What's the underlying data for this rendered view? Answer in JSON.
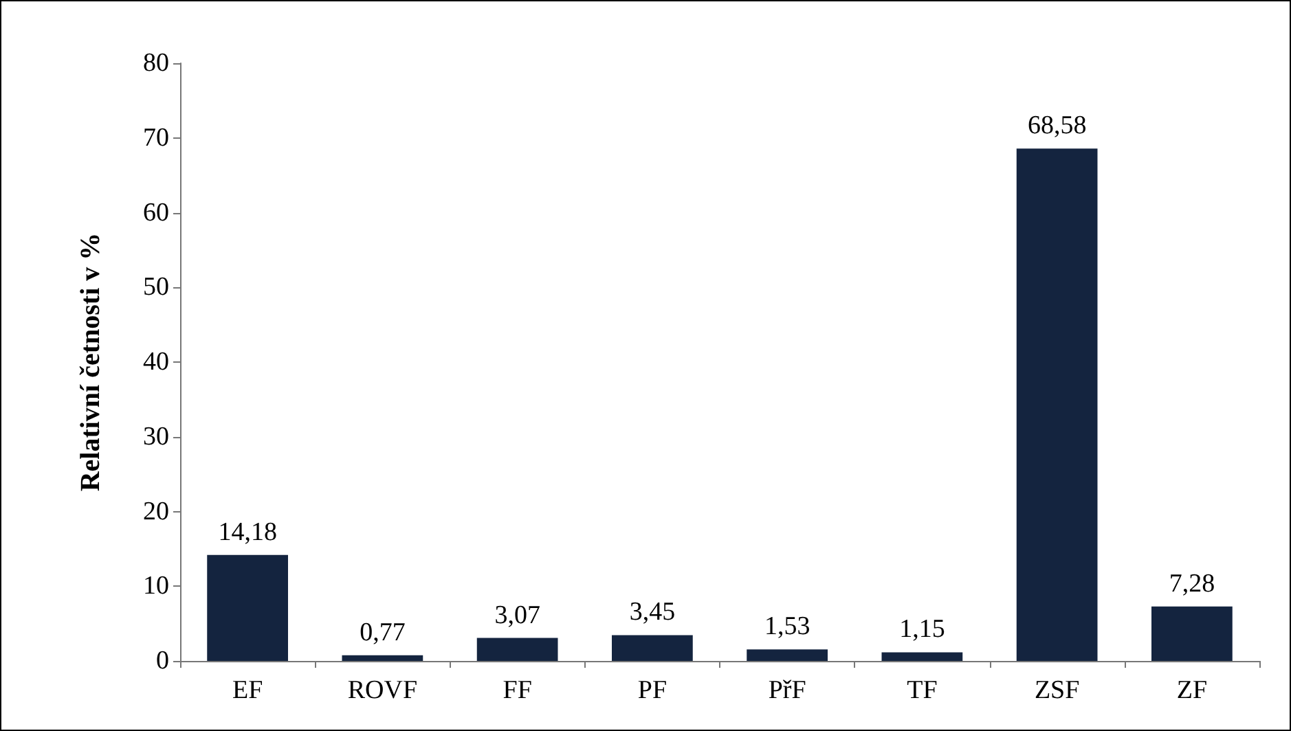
{
  "chart_data": {
    "type": "bar",
    "ylabel": "Relativní četnosti v %",
    "categories": [
      "EF",
      "ROVF",
      "FF",
      "PF",
      "PřF",
      "TF",
      "ZSF",
      "ZF"
    ],
    "values": [
      14.18,
      0.77,
      3.07,
      3.45,
      1.53,
      1.15,
      68.58,
      7.28
    ],
    "value_labels": [
      "14,18",
      "0,77",
      "3,07",
      "3,45",
      "1,53",
      "1,15",
      "68,58",
      "7,28"
    ],
    "color": "#14243f",
    "ylim": [
      0,
      80
    ],
    "yticks": [
      0,
      10,
      20,
      30,
      40,
      50,
      60,
      70,
      80
    ],
    "grid": false
  }
}
